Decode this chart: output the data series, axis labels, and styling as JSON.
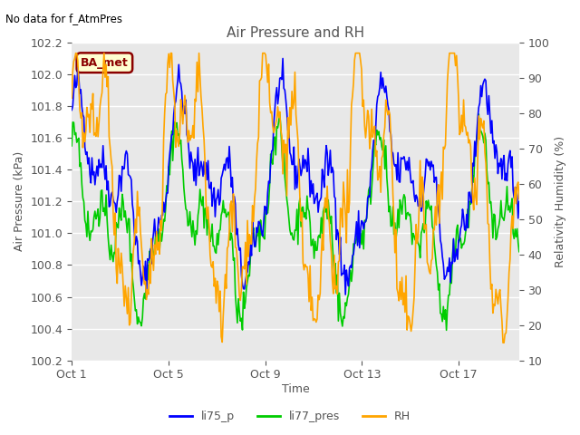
{
  "title": "Air Pressure and RH",
  "top_left_text": "No data for f_AtmPres",
  "annotation_box": "BA_met",
  "xlabel": "Time",
  "ylabel_left": "Air Pressure (kPa)",
  "ylabel_right": "Relativity Humidity (%)",
  "ylim_left": [
    100.2,
    102.2
  ],
  "ylim_right": [
    10,
    100
  ],
  "yticks_left": [
    100.2,
    100.4,
    100.6,
    100.8,
    101.0,
    101.2,
    101.4,
    101.6,
    101.8,
    102.0,
    102.2
  ],
  "yticks_right": [
    10,
    20,
    30,
    40,
    50,
    60,
    70,
    80,
    90,
    100
  ],
  "xtick_positions": [
    0,
    4,
    8,
    12,
    16
  ],
  "xtick_labels": [
    "Oct 1",
    "Oct 5",
    "Oct 9",
    "Oct 13",
    "Oct 17"
  ],
  "n_days": 18.5,
  "line_colors": {
    "li75_p": "#0000FF",
    "li77_pres": "#00CC00",
    "RH": "#FFA500"
  },
  "line_width": 1.2,
  "fig_bg_color": "#FFFFFF",
  "plot_bg_color": "#E8E8E8",
  "grid_color": "#FFFFFF",
  "title_color": "#555555",
  "label_color": "#555555",
  "tick_color": "#555555",
  "annotation_text_color": "#8B0000",
  "annotation_box_color": "#FFFFD0",
  "annotation_edge_color": "#8B0000",
  "legend_labels": [
    "li75_p",
    "li77_pres",
    "RH"
  ]
}
